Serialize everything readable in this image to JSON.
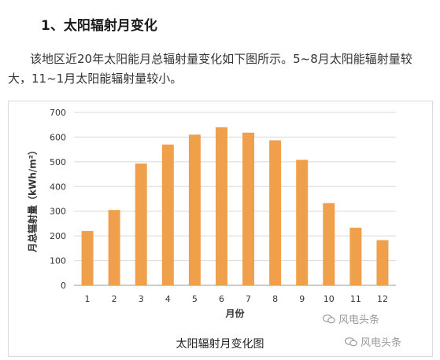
{
  "heading": "1、太阳辐射月变化",
  "paragraph": "该地区近20年太阳能月总辐射量变化如下图所示。5~8月太阳能辐射量较大，11~1月太阳能辐射量较小。",
  "caption": "太阳辐射月变化图",
  "watermark": "风电头条",
  "colors": {
    "bar": "#F0A04B",
    "grid": "#d9d9d9",
    "axis": "#999999"
  },
  "chart_data": {
    "type": "bar",
    "categories": [
      "1",
      "2",
      "3",
      "4",
      "5",
      "6",
      "7",
      "8",
      "9",
      "10",
      "11",
      "12"
    ],
    "values": [
      220,
      305,
      493,
      570,
      610,
      640,
      618,
      587,
      508,
      333,
      233,
      183
    ],
    "xlabel": "月份",
    "ylabel": "月总辐射量（kWh/m²）",
    "ylim": [
      0,
      700
    ],
    "yticks": [
      0,
      100,
      200,
      300,
      400,
      500,
      600,
      700
    ],
    "grid": true
  }
}
